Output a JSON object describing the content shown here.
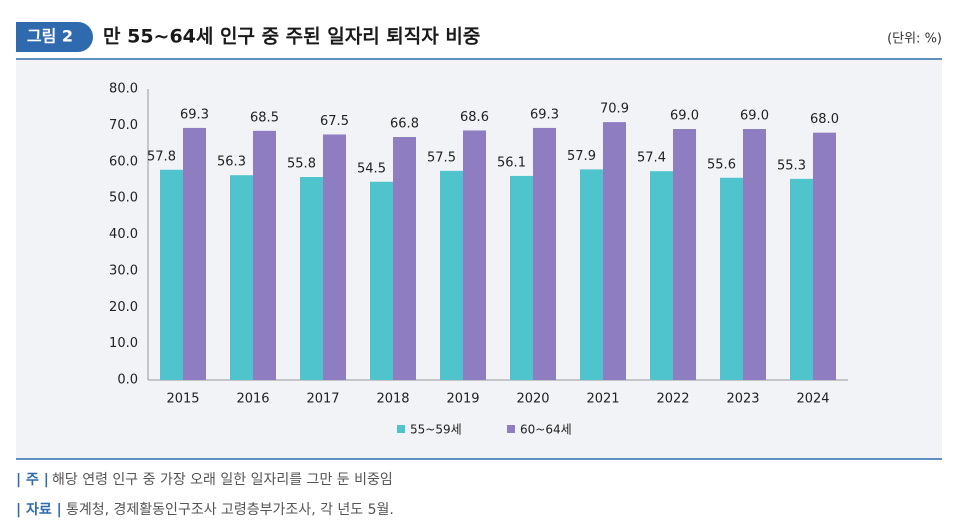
{
  "header": {
    "badge": "그림 2",
    "title": "만 55~64세 인구 중 주된 일자리 퇴직자 비중",
    "unit": "(단위: %)"
  },
  "chart_data": {
    "type": "bar",
    "categories": [
      "2015",
      "2016",
      "2017",
      "2018",
      "2019",
      "2020",
      "2021",
      "2022",
      "2023",
      "2024"
    ],
    "series": [
      {
        "name": "55~59세",
        "color": "#4fc4cc",
        "values": [
          57.8,
          56.3,
          55.8,
          54.5,
          57.5,
          56.1,
          57.9,
          57.4,
          55.6,
          55.3
        ],
        "value_labels": [
          "57.8",
          "56.3",
          "55.8",
          "54.5",
          "57.5",
          "56.1",
          "57.9",
          "57.4",
          "55.6",
          "55.3"
        ]
      },
      {
        "name": "60~64세",
        "color": "#8f7dc2",
        "values": [
          69.3,
          68.5,
          67.5,
          66.8,
          68.6,
          69.3,
          70.9,
          69.0,
          69.0,
          68.0
        ],
        "value_labels": [
          "69.3",
          "68.5",
          "67.5",
          "66.8",
          "68.6",
          "69.3",
          "70.9",
          "69.0",
          "69.0",
          "68.0"
        ]
      }
    ],
    "ylim": [
      0,
      80
    ],
    "yticks": [
      {
        "value": 0,
        "label": "0.0"
      },
      {
        "value": 10,
        "label": "10.0"
      },
      {
        "value": 20,
        "label": "20.0"
      },
      {
        "value": 30,
        "label": "30.0"
      },
      {
        "value": 40,
        "label": "40.0"
      },
      {
        "value": 50,
        "label": "50.0"
      },
      {
        "value": 60,
        "label": "60.0"
      },
      {
        "value": 70,
        "label": "70.0"
      },
      {
        "value": 80,
        "label": "80.0"
      }
    ],
    "grid": false,
    "legend": "bottom"
  },
  "notes": [
    {
      "label": "| 주 |",
      "text": "해당 연령 인구 중 가장 오래 일한 일자리를 그만 둔 비중임"
    },
    {
      "label": "| 자료 |",
      "text": "통계청, 경제활동인구조사 고령층부가조사, 각 년도 5월."
    }
  ]
}
